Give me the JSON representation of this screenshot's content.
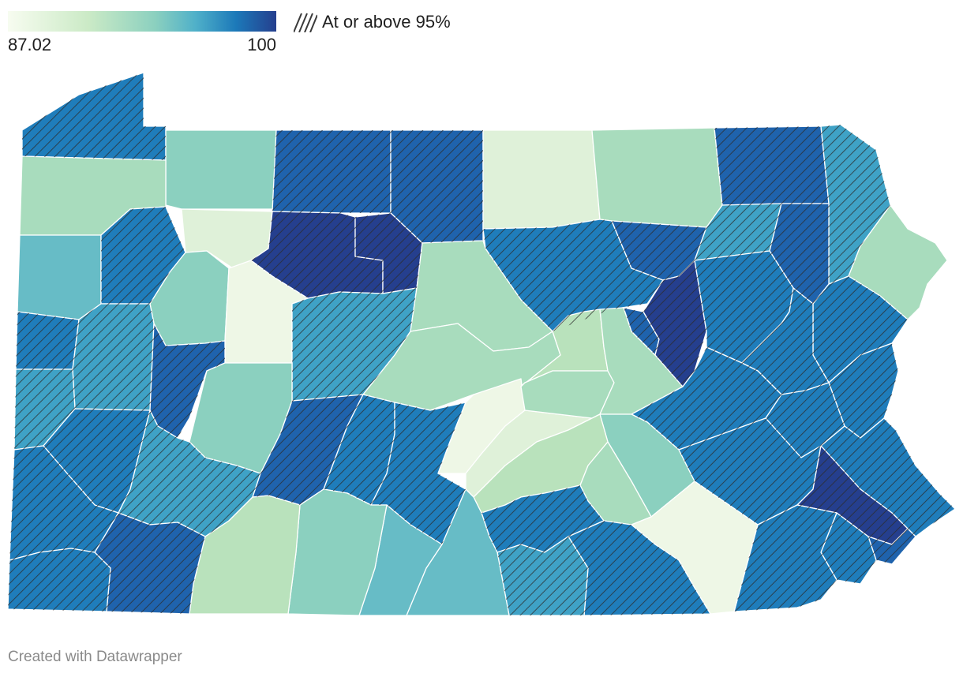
{
  "legend": {
    "min_label": "87.02",
    "max_label": "100",
    "gradient_colors": [
      "#f7fcf0",
      "#cbeac6",
      "#8bd0bf",
      "#4fb0c9",
      "#1c79b9",
      "#253f8e"
    ],
    "pattern_label": "At or above 95%",
    "pattern_color": "#3a3a3a"
  },
  "footer": {
    "credit": "Created with Datawrapper"
  },
  "map": {
    "region": "Pennsylvania counties",
    "colors": {
      "palest": "#eef7e6",
      "pale": "#dff1d9",
      "light_green": "#b9e2bc",
      "mint": "#a8dcbd",
      "teal_light": "#8bd0bf",
      "teal": "#67bcc6",
      "teal_mid": "#3fa2c6",
      "blue": "#1f7dbb",
      "blue_dark": "#1f63ad",
      "navy": "#253f8e"
    }
  }
}
